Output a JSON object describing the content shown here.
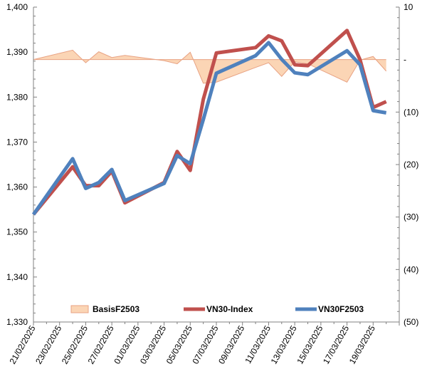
{
  "chart_data": {
    "type": "line",
    "title": "",
    "xlabel": "",
    "ylabel": "",
    "y2label": "",
    "ylim": [
      1330,
      1400
    ],
    "y_ticks": [
      "1,330",
      "1,340",
      "1,350",
      "1,360",
      "1,370",
      "1,380",
      "1,390",
      "1,400"
    ],
    "y2lim": [
      -50,
      10
    ],
    "y2_ticks": [
      "10",
      "-",
      "(10)",
      "(20)",
      "(30)",
      "(40)",
      "(50)"
    ],
    "x_tick_labels": [
      "21/02/2025",
      "23/02/2025",
      "25/02/2025",
      "27/02/2025",
      "01/03/2025",
      "03/03/2025",
      "05/03/2025",
      "07/03/2025",
      "09/03/2025",
      "11/03/2025",
      "13/03/2025",
      "15/03/2025",
      "17/03/2025",
      "19/03/2025"
    ],
    "x_dates": [
      "21/02/2025",
      "24/02/2025",
      "25/02/2025",
      "26/02/2025",
      "27/02/2025",
      "28/02/2025",
      "03/03/2025",
      "04/03/2025",
      "05/03/2025",
      "06/03/2025",
      "07/03/2025",
      "10/03/2025",
      "11/03/2025",
      "12/03/2025",
      "13/03/2025",
      "14/03/2025",
      "17/03/2025",
      "18/03/2025",
      "19/03/2025",
      "20/03/2025"
    ],
    "x_day_index": [
      0,
      3,
      4,
      5,
      6,
      7,
      10,
      11,
      12,
      13,
      14,
      17,
      18,
      19,
      20,
      21,
      24,
      25,
      26,
      27
    ],
    "grid": false,
    "legend_position": "bottom",
    "series": [
      {
        "name": "BasisF2503",
        "axis": "right",
        "style": "area",
        "color": "#fbd5b5",
        "edge_color": "#e8a283",
        "values": [
          0,
          1.8,
          -0.6,
          1.5,
          0.4,
          0.8,
          -0.2,
          -0.8,
          1.4,
          -4.5,
          -4.3,
          -1.5,
          -0.6,
          -3.2,
          -0.4,
          -0.8,
          -4.3,
          -0.1,
          0.6,
          -2.2
        ]
      },
      {
        "name": "VN30-Index",
        "axis": "left",
        "style": "line",
        "color": "#c0504d",
        "values": [
          1353.9,
          1364.5,
          1360.3,
          1360.3,
          1363.5,
          1356.5,
          1361.0,
          1367.9,
          1363.7,
          1379.5,
          1389.8,
          1391.0,
          1393.6,
          1392.5,
          1387.2,
          1387.0,
          1394.8,
          1388.3,
          1377.7,
          1379.0
        ]
      },
      {
        "name": "VN30F2503",
        "axis": "left",
        "style": "line",
        "color": "#4f81bd",
        "values": [
          1353.9,
          1366.3,
          1359.7,
          1361.0,
          1363.9,
          1357.0,
          1360.8,
          1367.0,
          1365.2,
          1375.0,
          1385.3,
          1389.2,
          1392.1,
          1388.4,
          1385.4,
          1385.0,
          1390.3,
          1387.2,
          1377.0,
          1376.5
        ]
      }
    ]
  }
}
